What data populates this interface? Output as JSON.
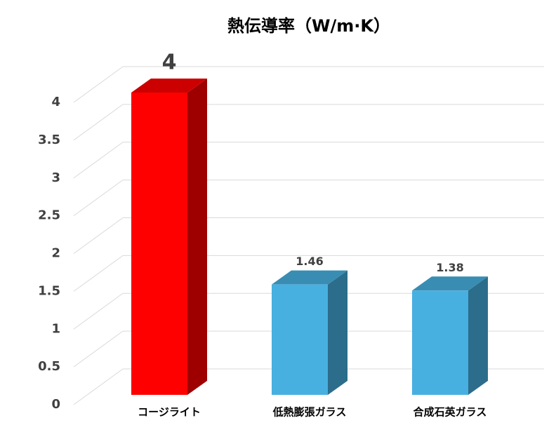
{
  "chart_data": {
    "type": "bar3d",
    "title": "熱伝導率（W/m·K）",
    "categories": [
      "コージライト",
      "低熱膨張ガラス",
      "合成石英ガラス"
    ],
    "values": [
      4,
      1.46,
      1.38
    ],
    "colors": [
      "#ff0000",
      "#47b0e0",
      "#47b0e0"
    ],
    "ylim": [
      0,
      4
    ],
    "yticks": [
      0,
      0.5,
      1,
      1.5,
      2,
      2.5,
      3,
      3.5,
      4
    ],
    "grid": true
  }
}
